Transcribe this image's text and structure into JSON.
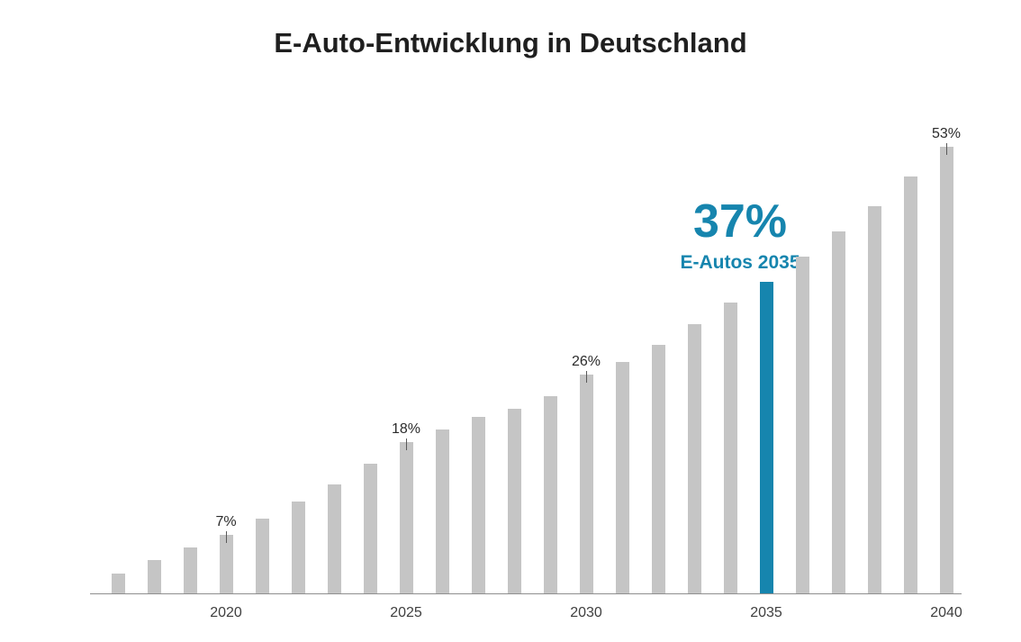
{
  "title": "E-Auto-Entwicklung in Deutschland",
  "highlight": {
    "value": "37%",
    "caption": "E-Autos 2035"
  },
  "colors": {
    "accent": "#1685ae",
    "bar_gray": "#c5c5c5",
    "axis": "#8f8f8f",
    "title_text": "#1f1f1f",
    "label_text": "#2b2b2b",
    "tick_label_text": "#3f3f3f",
    "leader_line": "#595959",
    "background": "#ffffff"
  },
  "chart_data": {
    "type": "bar",
    "title": "E-Auto-Entwicklung in Deutschland",
    "categories": [
      2017,
      2018,
      2019,
      2020,
      2021,
      2022,
      2023,
      2024,
      2025,
      2026,
      2027,
      2028,
      2029,
      2030,
      2031,
      2032,
      2033,
      2034,
      2035,
      2036,
      2037,
      2038,
      2039,
      2040
    ],
    "values": [
      2.5,
      4,
      5.5,
      7,
      9,
      11,
      13,
      15.5,
      18,
      19.5,
      21,
      22,
      23.5,
      26,
      27.5,
      29.5,
      32,
      34.5,
      37,
      40,
      43,
      46,
      49.5,
      53
    ],
    "unit": "%",
    "highlighted_category": 2035,
    "highlight_label": {
      "value": "37%",
      "caption": "E-Autos 2035"
    },
    "data_labels": [
      {
        "category": 2020,
        "text": "7%"
      },
      {
        "category": 2025,
        "text": "18%"
      },
      {
        "category": 2030,
        "text": "26%"
      },
      {
        "category": 2040,
        "text": "53%"
      }
    ],
    "x_tick_labels": [
      "2020",
      "2025",
      "2030",
      "2035",
      "2040"
    ],
    "xlabel": "",
    "ylabel": "",
    "ylim": [
      0,
      56
    ],
    "grid": false,
    "legend": false
  }
}
